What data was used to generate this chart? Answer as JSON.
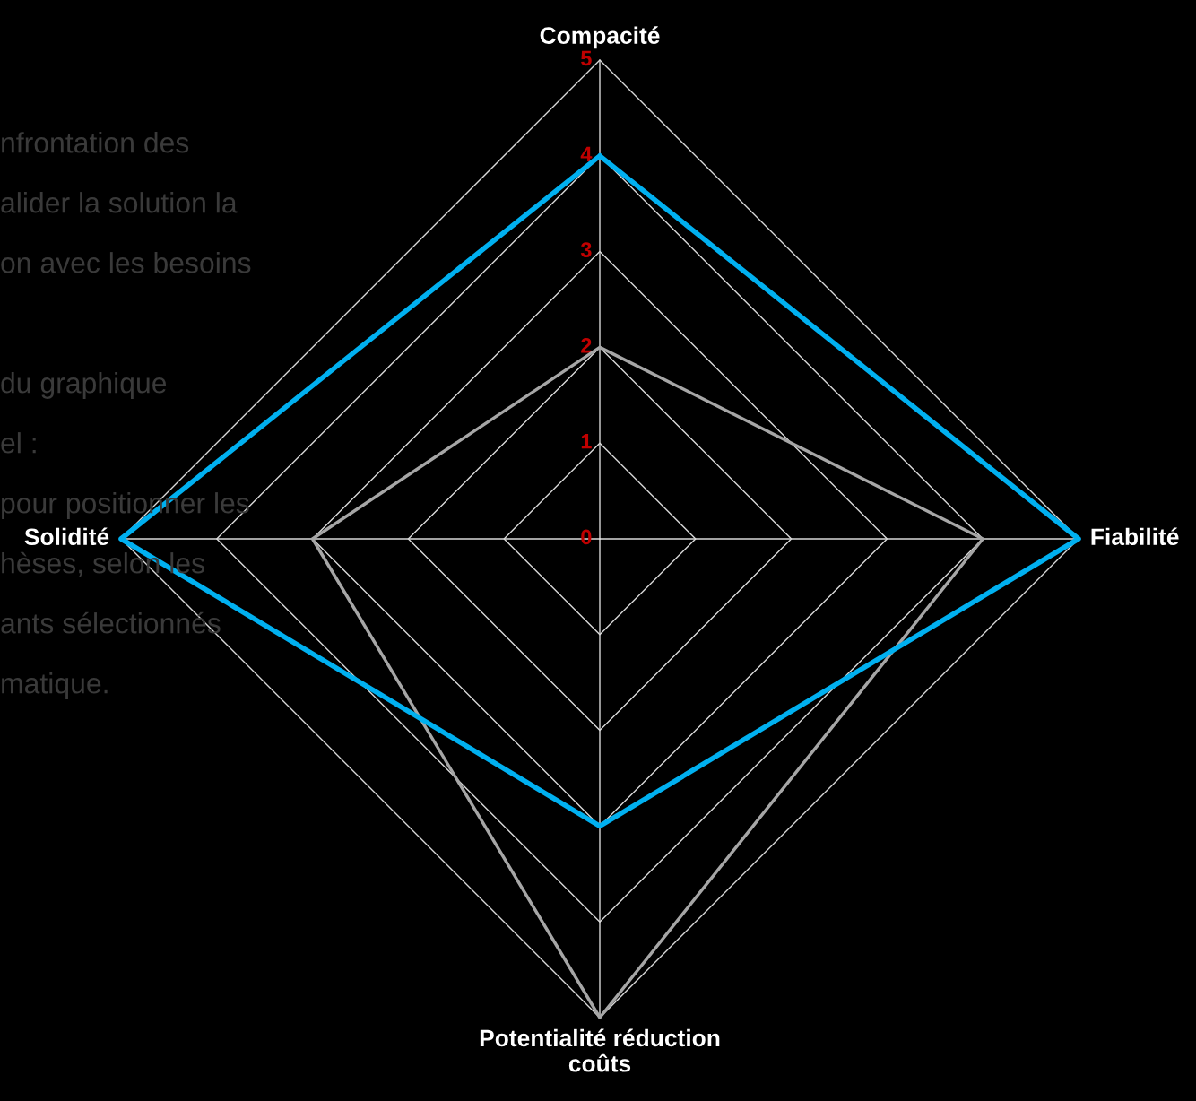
{
  "chart_data": {
    "type": "radar",
    "categories": [
      "Compacité",
      "Fiabilité",
      "Potentialité réduction\ncoûts",
      "Solidité"
    ],
    "series": [
      {
        "color": "#00b0f0",
        "values": [
          4,
          5,
          3,
          5
        ]
      },
      {
        "color": "#a6a6a6",
        "values": [
          2,
          4,
          5,
          3
        ]
      }
    ],
    "ylim": [
      0,
      5
    ],
    "yticks": [
      0,
      1,
      2,
      3,
      4,
      5
    ],
    "grid": true,
    "annotations": [
      "nfrontation des",
      "alider la solution la",
      "on avec les besoins",
      "du graphique",
      "el :",
      "pour positionner les",
      "hèses, selon les",
      "ants sélectionnés",
      "matique."
    ]
  }
}
